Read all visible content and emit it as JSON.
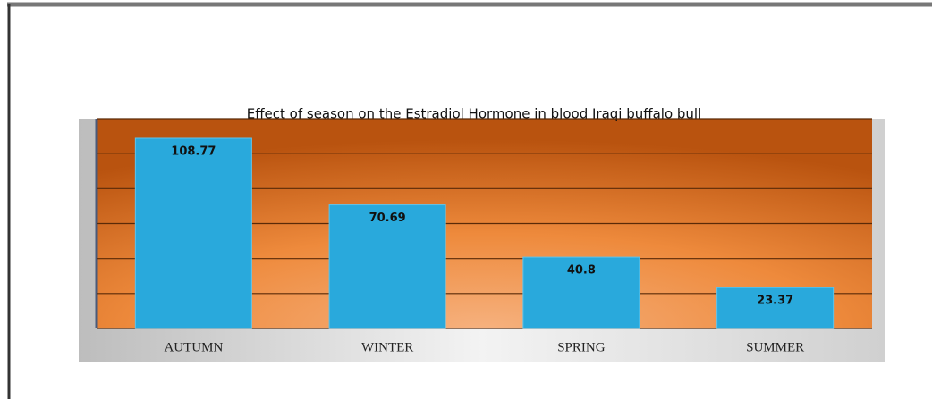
{
  "chart_data": {
    "type": "bar",
    "title": "Effect of season on the Estradiol Hormone in blood Iraqi buffalo bull",
    "categories": [
      "AUTUMN",
      "WINTER",
      "SPRING",
      "SUMMER"
    ],
    "values": [
      108.77,
      70.69,
      40.8,
      23.37
    ],
    "color": "#29a9dc",
    "ylim": [
      0,
      120
    ],
    "yticks": [
      0,
      20,
      40,
      60,
      80,
      100,
      120
    ],
    "grid": true
  }
}
